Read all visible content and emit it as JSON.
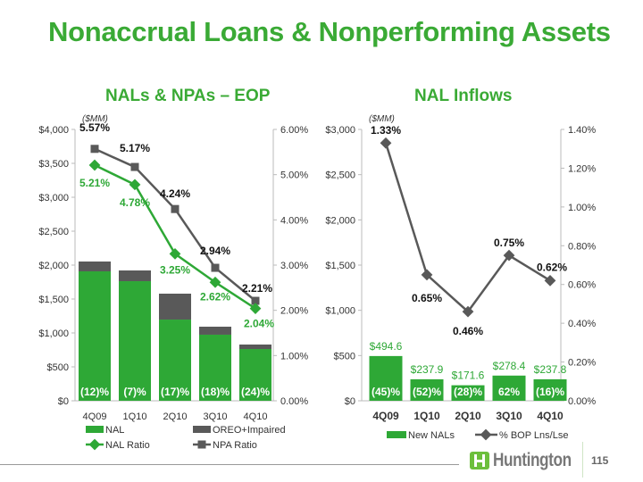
{
  "title": "Nonaccrual Loans & Nonperforming Assets",
  "page_number": "115",
  "logo_text": "Huntington",
  "colors": {
    "green": "#2ea836",
    "dark": "#595959",
    "title": "#3aaa35"
  },
  "chart_data": [
    {
      "type": "bar",
      "title": "NALs & NPAs – EOP",
      "unit_label": "($MM)",
      "categories": [
        "4Q09",
        "1Q10",
        "2Q10",
        "3Q10",
        "4Q10"
      ],
      "ylim": [
        0,
        4000
      ],
      "y2lim": [
        0,
        6
      ],
      "yticks": [
        "$0",
        "$500",
        "$1,000",
        "$1,500",
        "$2,000",
        "$2,500",
        "$3,000",
        "$3,500",
        "$4,000"
      ],
      "y2ticks": [
        "0.00%",
        "1.00%",
        "2.00%",
        "3.00%",
        "4.00%",
        "5.00%",
        "6.00%"
      ],
      "series": [
        {
          "name": "NAL",
          "kind": "stacked-bar",
          "values": [
            1908,
            1763,
            1197,
            974,
            763
          ]
        },
        {
          "name": "OREO+Impaired",
          "kind": "stacked-bar",
          "values": [
            145,
            158,
            382,
            118,
            66
          ]
        },
        {
          "name": "NAL Ratio",
          "kind": "line",
          "axis": "right",
          "values": [
            5.21,
            4.78,
            3.25,
            2.62,
            2.04
          ],
          "labels": [
            "5.21%",
            "4.78%",
            "3.25%",
            "2.62%",
            "2.04%"
          ]
        },
        {
          "name": "NPA Ratio",
          "kind": "line",
          "axis": "right",
          "values": [
            5.57,
            5.17,
            4.24,
            2.94,
            2.21
          ],
          "labels": [
            "5.57%",
            "5.17%",
            "4.24%",
            "2.94%",
            "2.21%"
          ]
        }
      ],
      "bar_labels": [
        "(12)%",
        "(7)%",
        "(17)%",
        "(18)%",
        "(24)%"
      ],
      "legend": [
        "NAL",
        "OREO+Impaired",
        "NAL Ratio",
        "NPA Ratio"
      ]
    },
    {
      "type": "bar",
      "title": "NAL Inflows",
      "unit_label": "($MM)",
      "categories": [
        "4Q09",
        "1Q10",
        "2Q10",
        "3Q10",
        "4Q10"
      ],
      "ylim": [
        0,
        3000
      ],
      "y2lim": [
        0,
        1.4
      ],
      "yticks": [
        "$0",
        "$500",
        "$1,000",
        "$1,500",
        "$2,000",
        "$2,500",
        "$3,000"
      ],
      "y2ticks": [
        "0.00%",
        "0.20%",
        "0.40%",
        "0.60%",
        "0.80%",
        "1.00%",
        "1.20%",
        "1.40%"
      ],
      "series": [
        {
          "name": "New NALs",
          "kind": "bar",
          "values": [
            494.6,
            237.9,
            171.6,
            278.4,
            237.8
          ],
          "labels": [
            "$494.6",
            "$237.9",
            "$171.6",
            "$278.4",
            "$237.8"
          ]
        },
        {
          "name": "% BOP Lns/Lse",
          "kind": "line",
          "axis": "right",
          "values": [
            1.33,
            0.65,
            0.46,
            0.75,
            0.62
          ],
          "labels": [
            "1.33%",
            "0.65%",
            "0.46%",
            "0.75%",
            "0.62%"
          ]
        }
      ],
      "bar_labels": [
        "(45)%",
        "(52)%",
        "(28)%",
        "62%",
        "(16)%"
      ],
      "legend": [
        "New NALs",
        "% BOP Lns/Lse"
      ]
    }
  ]
}
